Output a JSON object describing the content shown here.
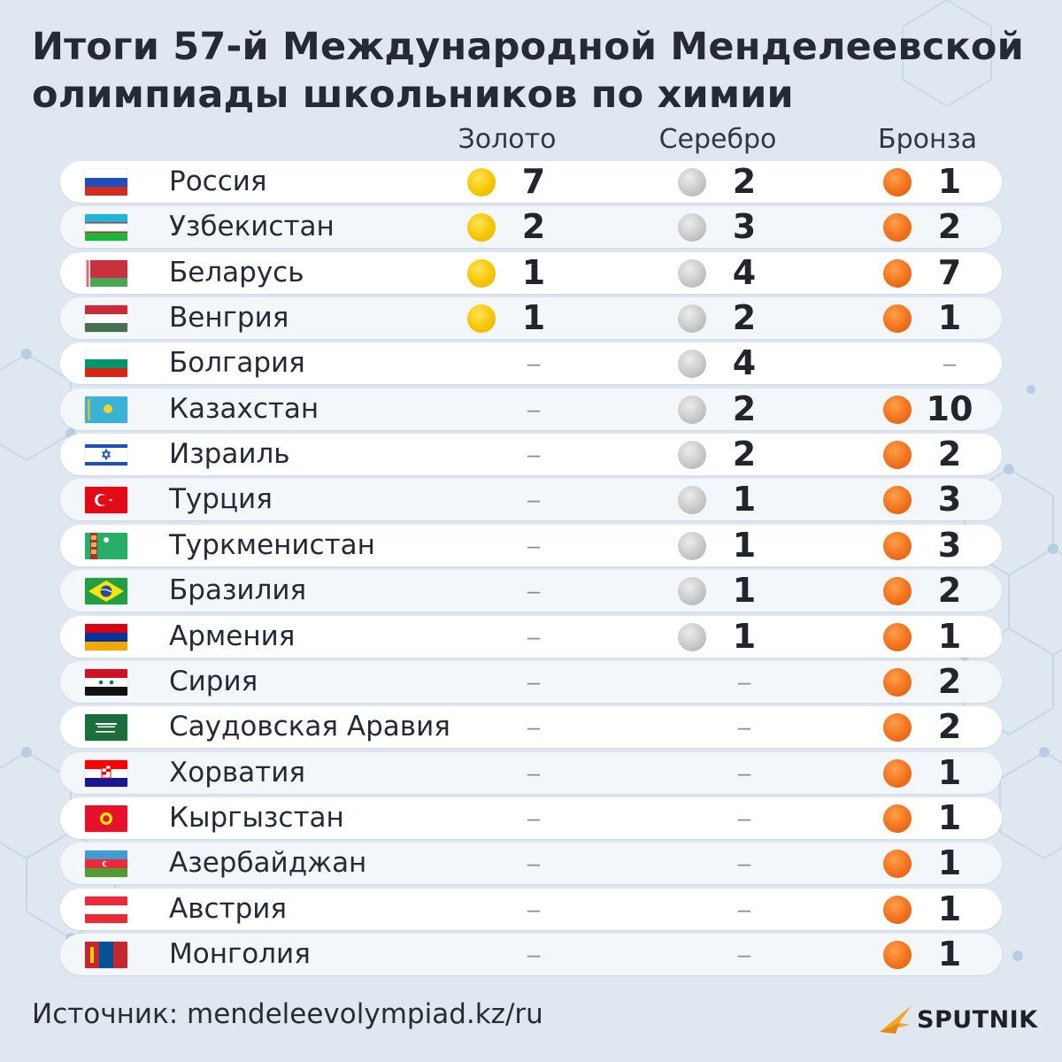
{
  "title": "Итоги 57-й Международной Менделеевской олимпиады школьников по химии",
  "columns": {
    "gold": "Золото",
    "silver": "Серебро",
    "bronze": "Бронза"
  },
  "dash": "–",
  "rows": [
    {
      "flag": "russia-flag",
      "country": "Россия",
      "gold": "7",
      "silver": "2",
      "bronze": "1"
    },
    {
      "flag": "uzbekistan-flag",
      "country": "Узбекистан",
      "gold": "2",
      "silver": "3",
      "bronze": "2"
    },
    {
      "flag": "belarus-flag",
      "country": "Беларусь",
      "gold": "1",
      "silver": "4",
      "bronze": "7"
    },
    {
      "flag": "hungary-flag",
      "country": "Венгрия",
      "gold": "1",
      "silver": "2",
      "bronze": "1"
    },
    {
      "flag": "bulgaria-flag",
      "country": "Болгария",
      "gold": null,
      "silver": "4",
      "bronze": null
    },
    {
      "flag": "kazakhstan-flag",
      "country": "Казахстан",
      "gold": null,
      "silver": "2",
      "bronze": "10"
    },
    {
      "flag": "israel-flag",
      "country": "Израиль",
      "gold": null,
      "silver": "2",
      "bronze": "2"
    },
    {
      "flag": "turkey-flag",
      "country": "Турция",
      "gold": null,
      "silver": "1",
      "bronze": "3"
    },
    {
      "flag": "turkmenistan-flag",
      "country": "Туркменистан",
      "gold": null,
      "silver": "1",
      "bronze": "3"
    },
    {
      "flag": "brazil-flag",
      "country": "Бразилия",
      "gold": null,
      "silver": "1",
      "bronze": "2"
    },
    {
      "flag": "armenia-flag",
      "country": "Армения",
      "gold": null,
      "silver": "1",
      "bronze": "1"
    },
    {
      "flag": "syria-flag",
      "country": "Сирия",
      "gold": null,
      "silver": null,
      "bronze": "2"
    },
    {
      "flag": "saudi-arabia-flag",
      "country": "Саудовская Аравия",
      "gold": null,
      "silver": null,
      "bronze": "2"
    },
    {
      "flag": "croatia-flag",
      "country": "Хорватия",
      "gold": null,
      "silver": null,
      "bronze": "1"
    },
    {
      "flag": "kyrgyzstan-flag",
      "country": "Кыргызстан",
      "gold": null,
      "silver": null,
      "bronze": "1"
    },
    {
      "flag": "azerbaijan-flag",
      "country": "Азербайджан",
      "gold": null,
      "silver": null,
      "bronze": "1"
    },
    {
      "flag": "austria-flag",
      "country": "Австрия",
      "gold": null,
      "silver": null,
      "bronze": "1"
    },
    {
      "flag": "mongolia-flag",
      "country": "Монголия",
      "gold": null,
      "silver": null,
      "bronze": "1"
    }
  ],
  "source": "Источник: mendeleevolympiad.kz/ru",
  "logo_text": "SPUTNIK",
  "colors": {
    "gold": "#f7c600",
    "silver": "#c4c4c4",
    "bronze": "#f2711c",
    "logo_accent": "#f5a623"
  }
}
